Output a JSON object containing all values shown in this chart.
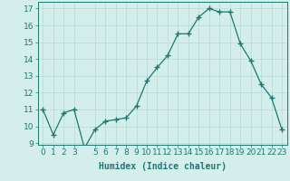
{
  "x": [
    0,
    1,
    2,
    3,
    4,
    5,
    6,
    7,
    8,
    9,
    10,
    11,
    12,
    13,
    14,
    15,
    16,
    17,
    18,
    19,
    20,
    21,
    22,
    23
  ],
  "y": [
    11.0,
    9.5,
    10.8,
    11.0,
    8.7,
    9.8,
    10.3,
    10.4,
    10.5,
    11.2,
    12.7,
    13.5,
    14.2,
    15.5,
    15.5,
    16.5,
    17.0,
    16.8,
    16.8,
    14.9,
    13.9,
    12.5,
    11.7,
    9.8
  ],
  "line_color": "#1a7a6e",
  "marker": "+",
  "marker_size": 4,
  "bg_color": "#d4eeec",
  "grid_color": "#b8d8d4",
  "xlabel": "Humidex (Indice chaleur)",
  "xlabel_fontsize": 7,
  "tick_fontsize": 6.5,
  "ylim": [
    8.9,
    17.4
  ],
  "yticks": [
    9,
    10,
    11,
    12,
    13,
    14,
    15,
    16,
    17
  ],
  "xticks": [
    0,
    1,
    2,
    3,
    5,
    6,
    7,
    8,
    9,
    10,
    11,
    12,
    13,
    14,
    15,
    16,
    17,
    18,
    19,
    20,
    21,
    22,
    23
  ],
  "xlim": [
    -0.5,
    23.5
  ]
}
